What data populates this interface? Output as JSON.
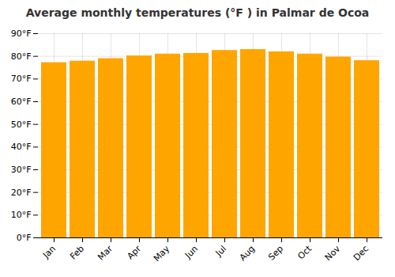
{
  "chart_data": {
    "type": "bar",
    "title": "Average monthly temperatures (°F ) in Palmar de Ocoa",
    "categories": [
      "Jan",
      "Feb",
      "Mar",
      "Apr",
      "May",
      "Jun",
      "Jul",
      "Aug",
      "Sep",
      "Oct",
      "Nov",
      "Dec"
    ],
    "values": [
      77.2,
      77.9,
      79.0,
      80.2,
      81.0,
      81.3,
      82.6,
      83.0,
      82.0,
      81.0,
      79.7,
      78.1
    ],
    "color": "#FFA500",
    "ylim": [
      0,
      90
    ],
    "yticks": [
      {
        "value": 0,
        "label": "0°F"
      },
      {
        "value": 10,
        "label": "10°F"
      },
      {
        "value": 20,
        "label": "20°F"
      },
      {
        "value": 30,
        "label": "30°F"
      },
      {
        "value": 40,
        "label": "40°F"
      },
      {
        "value": 50,
        "label": "50°F"
      },
      {
        "value": 60,
        "label": "60°F"
      },
      {
        "value": 70,
        "label": "70°F"
      },
      {
        "value": 80,
        "label": "80°F"
      },
      {
        "value": 90,
        "label": "90°F"
      }
    ],
    "grid": true
  }
}
